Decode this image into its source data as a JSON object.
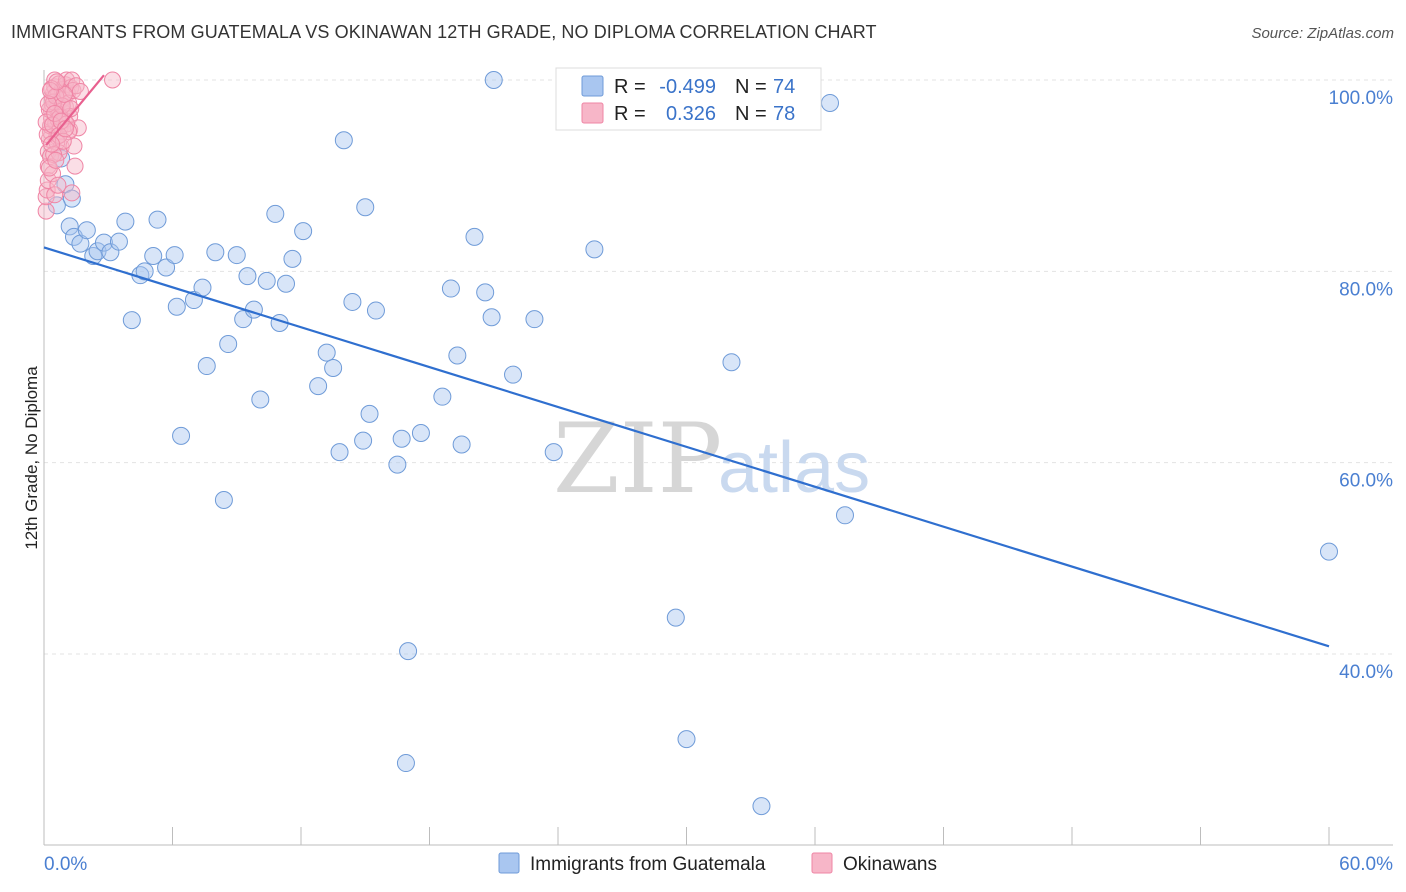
{
  "header": {
    "title": "IMMIGRANTS FROM GUATEMALA VS OKINAWAN 12TH GRADE, NO DIPLOMA CORRELATION CHART",
    "source": "Source: ZipAtlas.com"
  },
  "stats": [
    {
      "r_label": "R =",
      "r_value": "-0.499",
      "n_label": "N =",
      "n_value": "74",
      "color": "#a9c6f0"
    },
    {
      "r_label": "R =",
      "r_value": "0.326",
      "n_label": "N =",
      "n_value": "78",
      "color": "#f7b6c8"
    }
  ],
  "legend": [
    {
      "label": "Immigrants from Guatemala",
      "color": "#a9c6f0"
    },
    {
      "label": "Okinawans",
      "color": "#f7b6c8"
    }
  ],
  "watermark": {
    "zip": "ZIP",
    "atlas": "atlas"
  },
  "chart_data": {
    "type": "scatter",
    "title": "IMMIGRANTS FROM GUATEMALA VS OKINAWAN 12TH GRADE, NO DIPLOMA CORRELATION CHART",
    "xlabel": "",
    "ylabel": "12th Grade, No Diploma",
    "xlim": [
      0,
      60
    ],
    "ylim": [
      20,
      102
    ],
    "x_tick_labels": [
      "0.0%",
      "60.0%"
    ],
    "y_ticks": [
      40,
      60,
      80,
      100
    ],
    "y_tick_labels": [
      "40.0%",
      "60.0%",
      "80.0%",
      "100.0%"
    ],
    "grid": true,
    "colors": {
      "blue": "#a9c6f0",
      "blue_edge": "#6f9bd8",
      "blue_line": "#2f6fcf",
      "pink": "#f7b6c8",
      "pink_edge": "#ef85a5",
      "pink_line": "#e8608f"
    },
    "series": [
      {
        "name": "Immigrants from Guatemala",
        "trend": {
          "x": [
            0,
            60
          ],
          "y": [
            82.5,
            40.8
          ]
        },
        "points": [
          [
            1.2,
            84.7
          ],
          [
            1.4,
            83.6
          ],
          [
            1.7,
            82.9
          ],
          [
            2.0,
            84.3
          ],
          [
            2.3,
            81.6
          ],
          [
            2.5,
            82.1
          ],
          [
            2.8,
            83.0
          ],
          [
            3.1,
            82.0
          ],
          [
            3.5,
            83.1
          ],
          [
            3.8,
            85.2
          ],
          [
            4.1,
            74.9
          ],
          [
            4.5,
            79.6
          ],
          [
            4.7,
            80.0
          ],
          [
            5.1,
            81.6
          ],
          [
            5.3,
            85.4
          ],
          [
            5.7,
            80.4
          ],
          [
            6.1,
            81.7
          ],
          [
            6.2,
            76.3
          ],
          [
            6.4,
            62.8
          ],
          [
            7.0,
            77.0
          ],
          [
            7.4,
            78.3
          ],
          [
            7.6,
            70.1
          ],
          [
            8.0,
            82.0
          ],
          [
            8.4,
            56.1
          ],
          [
            8.6,
            72.4
          ],
          [
            9.0,
            81.7
          ],
          [
            9.3,
            75.0
          ],
          [
            9.5,
            79.5
          ],
          [
            9.8,
            76.0
          ],
          [
            10.1,
            66.6
          ],
          [
            10.4,
            79.0
          ],
          [
            10.8,
            86.0
          ],
          [
            11.0,
            74.6
          ],
          [
            11.3,
            78.7
          ],
          [
            11.6,
            81.3
          ],
          [
            12.1,
            84.2
          ],
          [
            12.8,
            68.0
          ],
          [
            13.2,
            71.5
          ],
          [
            13.5,
            69.9
          ],
          [
            13.8,
            61.1
          ],
          [
            14.0,
            93.7
          ],
          [
            14.4,
            76.8
          ],
          [
            14.9,
            62.3
          ],
          [
            15.0,
            86.7
          ],
          [
            15.2,
            65.1
          ],
          [
            15.5,
            75.9
          ],
          [
            16.5,
            59.8
          ],
          [
            16.7,
            62.5
          ],
          [
            16.9,
            28.6
          ],
          [
            17.0,
            40.3
          ],
          [
            17.6,
            63.1
          ],
          [
            18.6,
            66.9
          ],
          [
            19.0,
            78.2
          ],
          [
            19.3,
            71.2
          ],
          [
            19.5,
            61.9
          ],
          [
            20.1,
            83.6
          ],
          [
            20.6,
            77.8
          ],
          [
            20.9,
            75.2
          ],
          [
            21.0,
            100.0
          ],
          [
            21.9,
            69.2
          ],
          [
            22.9,
            75.0
          ],
          [
            23.8,
            61.1
          ],
          [
            25.7,
            82.3
          ],
          [
            29.5,
            43.8
          ],
          [
            30.0,
            31.1
          ],
          [
            32.1,
            70.5
          ],
          [
            33.5,
            24.1
          ],
          [
            36.7,
            97.6
          ],
          [
            37.4,
            54.5
          ],
          [
            60.0,
            50.7
          ],
          [
            1.0,
            89.1
          ],
          [
            0.8,
            91.8
          ],
          [
            1.3,
            87.6
          ],
          [
            0.6,
            86.9
          ]
        ]
      },
      {
        "name": "Okinawans",
        "trend": {
          "x": [
            0.1,
            2.8
          ],
          "y": [
            93.2,
            100.5
          ]
        },
        "points": [
          [
            0.1,
            86.3
          ],
          [
            0.1,
            87.8
          ],
          [
            0.15,
            88.5
          ],
          [
            0.2,
            91.0
          ],
          [
            0.2,
            92.5
          ],
          [
            0.25,
            93.8
          ],
          [
            0.3,
            94.6
          ],
          [
            0.3,
            95.2
          ],
          [
            0.35,
            96.0
          ],
          [
            0.35,
            96.8
          ],
          [
            0.4,
            97.4
          ],
          [
            0.4,
            98.1
          ],
          [
            0.45,
            98.7
          ],
          [
            0.5,
            99.3
          ],
          [
            0.5,
            100.0
          ],
          [
            0.55,
            95.5
          ],
          [
            0.6,
            94.1
          ],
          [
            0.6,
            97.0
          ],
          [
            0.65,
            98.4
          ],
          [
            0.7,
            99.6
          ],
          [
            0.7,
            96.4
          ],
          [
            0.75,
            95.0
          ],
          [
            0.8,
            93.0
          ],
          [
            0.8,
            97.9
          ],
          [
            0.85,
            99.0
          ],
          [
            0.9,
            98.0
          ],
          [
            0.9,
            96.6
          ],
          [
            0.95,
            95.8
          ],
          [
            1.0,
            97.2
          ],
          [
            1.0,
            99.5
          ],
          [
            1.05,
            100.0
          ],
          [
            1.1,
            98.6
          ],
          [
            1.15,
            97.6
          ],
          [
            1.2,
            96.2
          ],
          [
            1.2,
            94.8
          ],
          [
            1.25,
            99.2
          ],
          [
            1.3,
            100.0
          ],
          [
            1.35,
            98.9
          ],
          [
            1.4,
            93.1
          ],
          [
            1.45,
            91.0
          ],
          [
            1.5,
            99.4
          ],
          [
            1.6,
            95.0
          ],
          [
            1.7,
            98.8
          ],
          [
            0.2,
            89.5
          ],
          [
            0.3,
            92.0
          ],
          [
            0.4,
            90.2
          ],
          [
            0.5,
            88.0
          ],
          [
            0.6,
            93.5
          ],
          [
            0.7,
            92.4
          ],
          [
            0.15,
            94.3
          ],
          [
            0.25,
            96.9
          ],
          [
            0.35,
            99.1
          ],
          [
            0.45,
            97.7
          ],
          [
            0.55,
            98.3
          ],
          [
            0.65,
            95.9
          ],
          [
            0.75,
            96.1
          ],
          [
            0.85,
            97.3
          ],
          [
            0.95,
            98.5
          ],
          [
            1.05,
            95.4
          ],
          [
            1.15,
            94.6
          ],
          [
            1.25,
            97.0
          ],
          [
            0.1,
            95.6
          ],
          [
            0.2,
            97.5
          ],
          [
            0.3,
            98.9
          ],
          [
            0.4,
            95.3
          ],
          [
            0.5,
            96.5
          ],
          [
            0.6,
            99.8
          ],
          [
            0.7,
            94.2
          ],
          [
            0.8,
            95.7
          ],
          [
            0.9,
            93.6
          ],
          [
            1.0,
            94.9
          ],
          [
            3.2,
            100.0
          ],
          [
            1.3,
            88.2
          ],
          [
            0.45,
            92.2
          ],
          [
            0.25,
            90.8
          ],
          [
            0.55,
            91.6
          ],
          [
            0.65,
            89.0
          ],
          [
            0.35,
            93.3
          ]
        ]
      }
    ]
  }
}
